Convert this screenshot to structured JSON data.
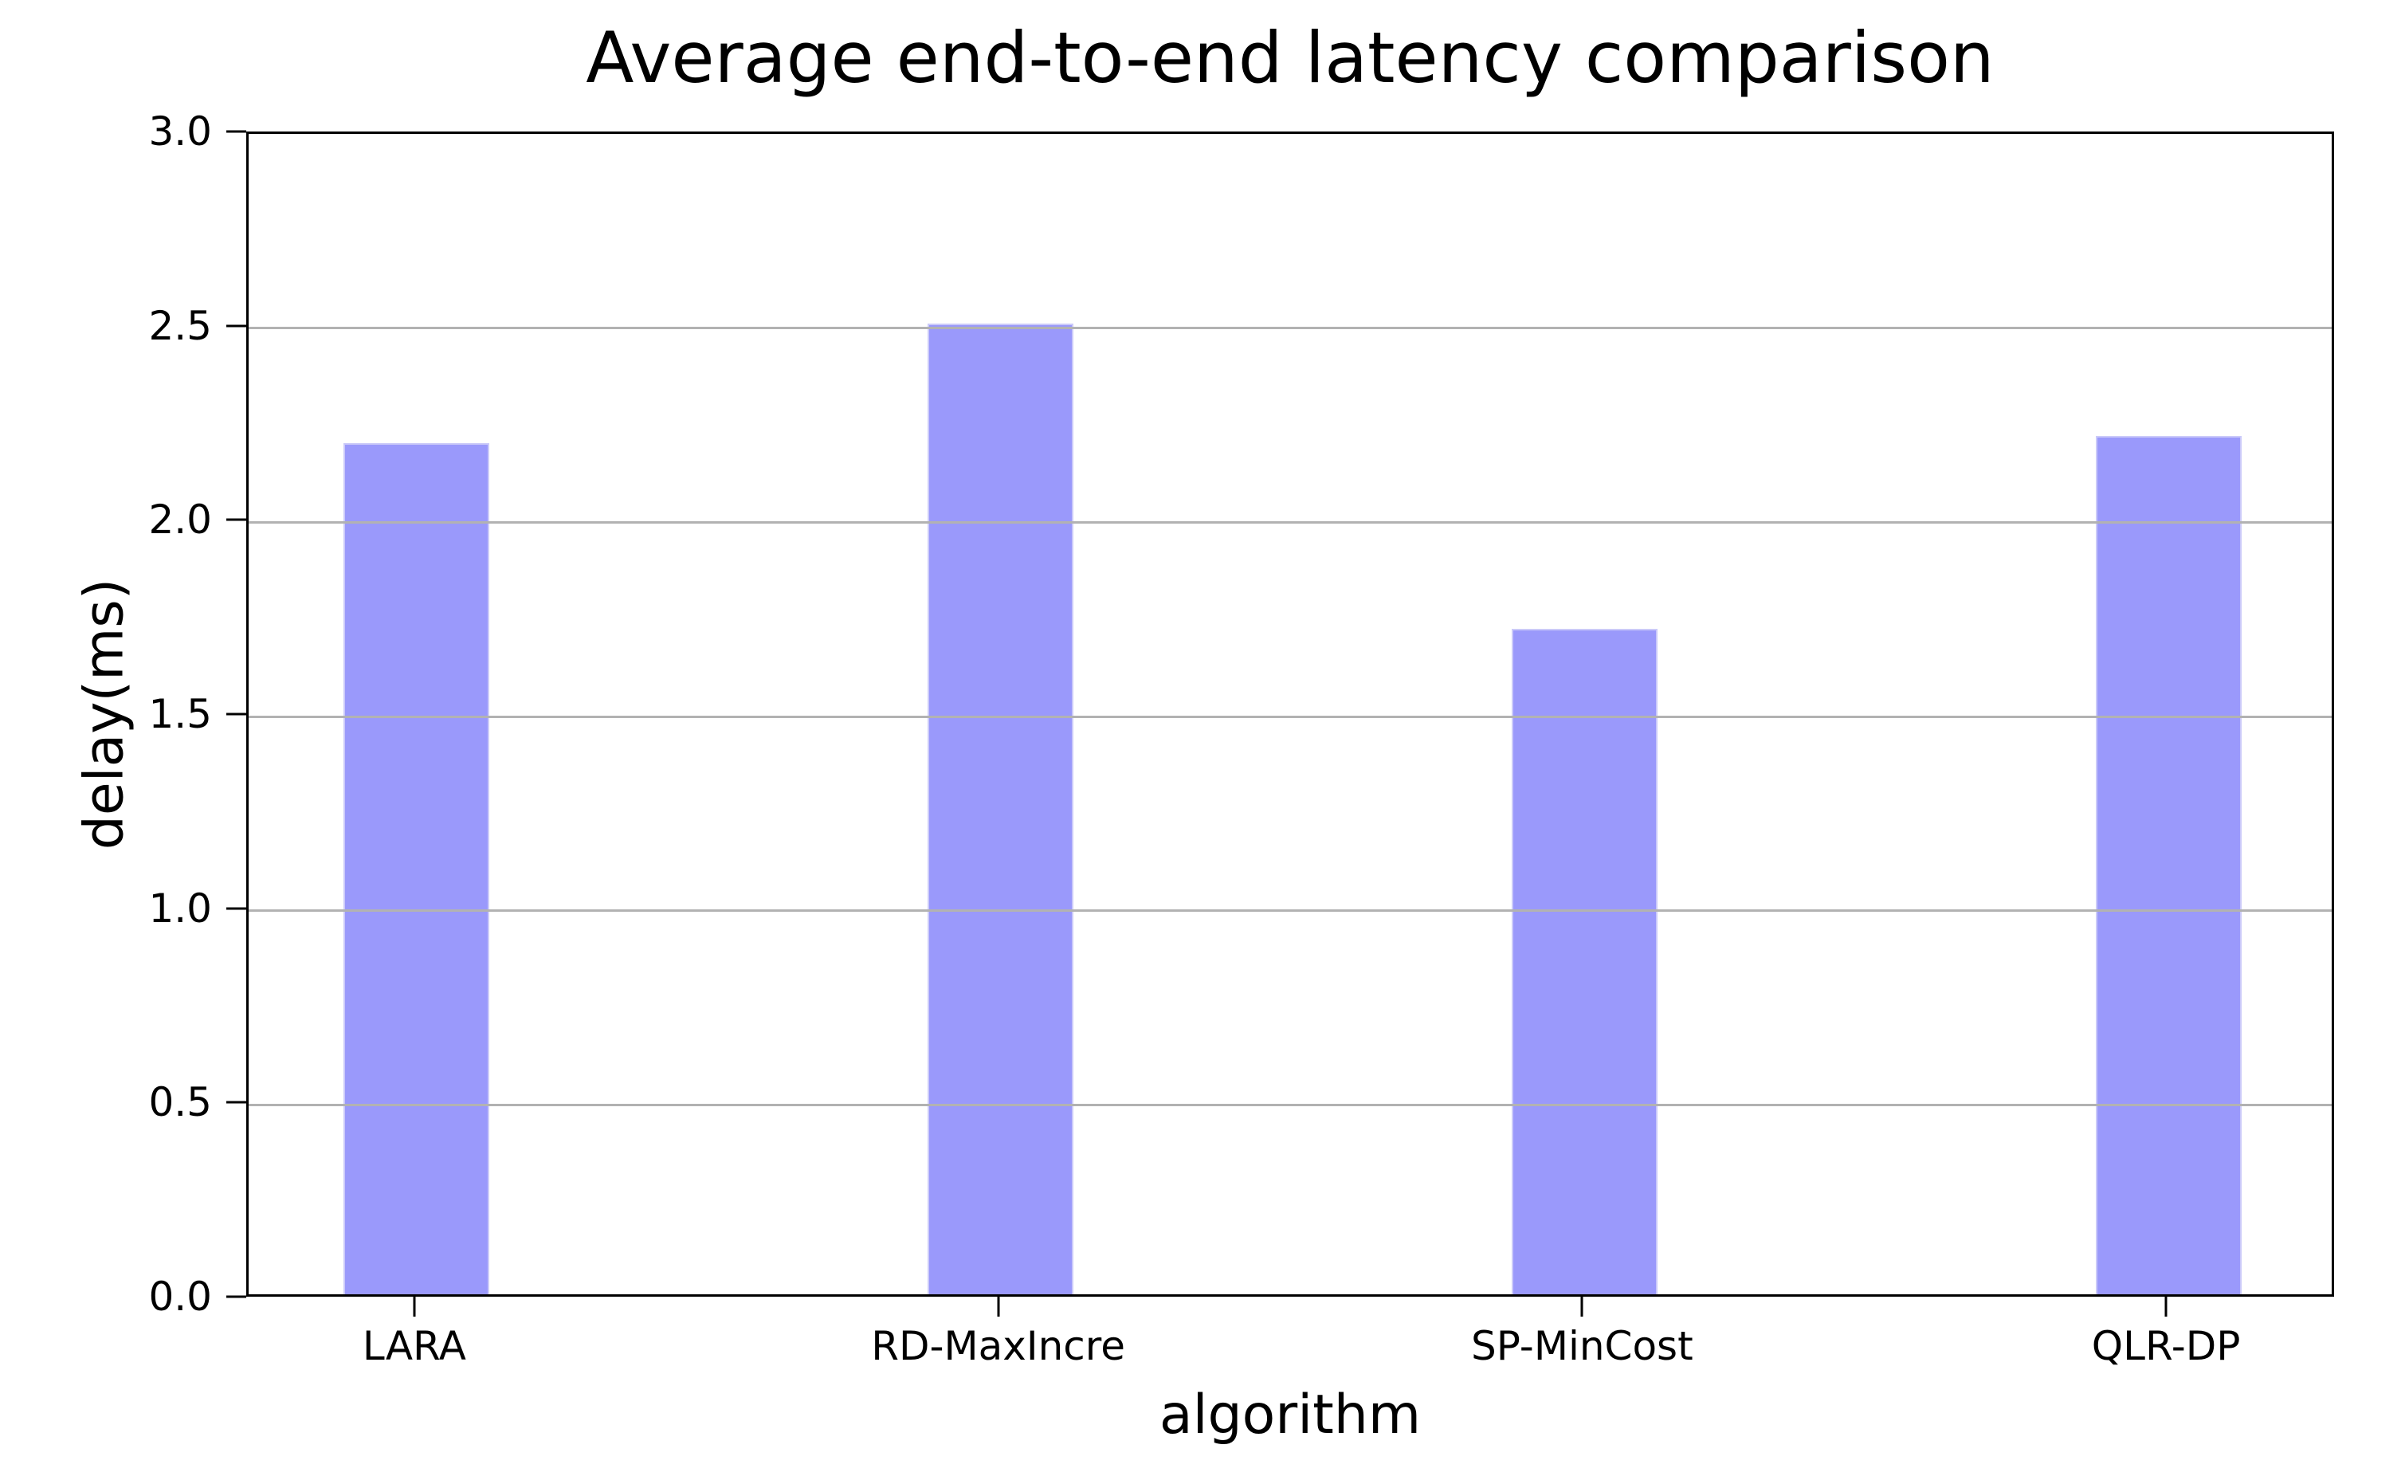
{
  "chart_data": {
    "type": "bar",
    "title": "Average end-to-end latency comparison",
    "xlabel": "algorithm",
    "ylabel": "delay(ms)",
    "categories": [
      "LARA",
      "RD-MaxIncre",
      "SP-MinCost",
      "QLR-DP"
    ],
    "values": [
      2.2,
      2.51,
      1.72,
      2.22
    ],
    "ylim": [
      0.0,
      3.0
    ],
    "ytick_step": 0.5,
    "ytick_labels": [
      "0.0",
      "0.5",
      "1.0",
      "1.5",
      "2.0",
      "2.5",
      "3.0"
    ],
    "grid": true,
    "grid_on_top_of_bars": true,
    "legend": "none",
    "colors": {
      "bar_fill": "#9a99fb",
      "bar_edge": "#cbcaf9",
      "gridline": "#b2b2b2",
      "axis": "#000000",
      "text": "#000000",
      "background": "#ffffff"
    }
  }
}
